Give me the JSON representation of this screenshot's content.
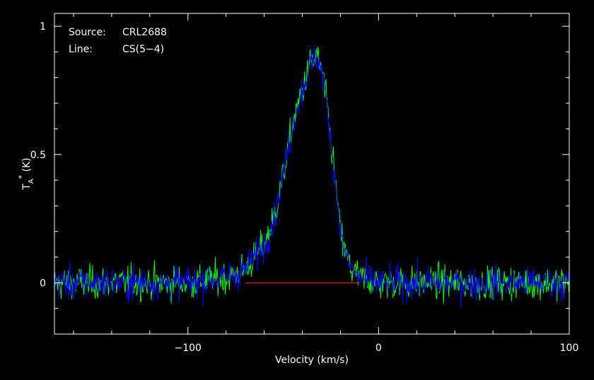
{
  "annotation": {
    "source_label": "Source:",
    "source_value": "CRL2688",
    "line_label": "Line:",
    "line_value": "CS(5−4)"
  },
  "chart_data": {
    "type": "line",
    "xlabel": "Velocity (km/s)",
    "ylabel": "TA* (K)",
    "ylabel_parts": {
      "main": "T",
      "sub": "A",
      "sup": "*",
      "rest": " (K)"
    },
    "xlim": [
      -170,
      100
    ],
    "ylim": [
      -0.2,
      1.05
    ],
    "xticks": [
      -100,
      0,
      100
    ],
    "xtick_labels": [
      "−100",
      "0",
      "100"
    ],
    "yticks": [
      0,
      0.5,
      1
    ],
    "ytick_labels": [
      "0",
      "0.5",
      "1"
    ],
    "grid": false,
    "colors": {
      "background": "#000000",
      "axes": "#ffffff",
      "series1": "#00ff00",
      "series2": "#0000ff",
      "baseline": "#ff0000"
    },
    "profile_points": {
      "x": [
        -170,
        -130,
        -100,
        -80,
        -70,
        -60,
        -55,
        -50,
        -45,
        -40,
        -36,
        -32,
        -29,
        -26,
        -23,
        -20,
        -17,
        -14,
        -10,
        0,
        50,
        100
      ],
      "y": [
        0,
        0,
        0,
        0.02,
        0.05,
        0.15,
        0.25,
        0.42,
        0.62,
        0.75,
        0.85,
        0.88,
        0.8,
        0.62,
        0.42,
        0.2,
        0.1,
        0.05,
        0.02,
        0,
        0,
        0
      ]
    },
    "noise_rms_K": 0.045,
    "channel_width_kms": 0.35,
    "series": [
      {},
      {}
    ],
    "baseline_segment": {
      "x": [
        -70,
        -10
      ],
      "y": 0
    }
  }
}
